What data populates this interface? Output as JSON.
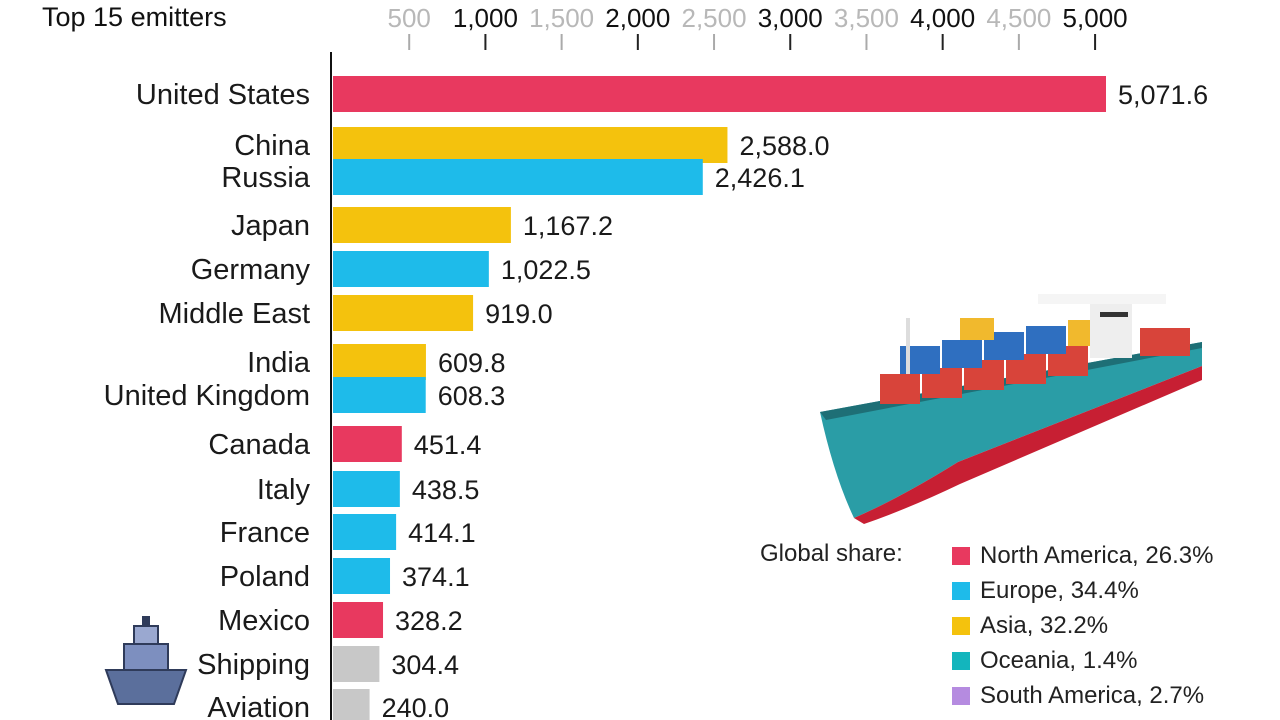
{
  "chart_data": {
    "type": "bar",
    "orientation": "horizontal",
    "title": "Top 15 emitters",
    "xlim": [
      0,
      5000
    ],
    "x_ticks": [
      500,
      1000,
      1500,
      2000,
      2500,
      3000,
      3500,
      4000,
      4500,
      5000
    ],
    "x_tick_labels": [
      "500",
      "1,000",
      "1,500",
      "2,000",
      "2,500",
      "3,000",
      "3,500",
      "4,000",
      "4,500",
      "5,000"
    ],
    "categories": [
      "United States",
      "China",
      "Russia",
      "Japan",
      "Germany",
      "Middle East",
      "India",
      "United Kingdom",
      "Canada",
      "Italy",
      "France",
      "Poland",
      "Mexico",
      "Shipping",
      "Aviation"
    ],
    "values": [
      5071.6,
      2588.0,
      2426.1,
      1167.2,
      1022.5,
      919.0,
      609.8,
      608.3,
      451.4,
      438.5,
      414.1,
      374.1,
      328.2,
      304.4,
      240.0
    ],
    "value_labels": [
      "5,071.6",
      "2,588.0",
      "2,426.1",
      "1,167.2",
      "1,022.5",
      "919.0",
      "609.8",
      "608.3",
      "451.4",
      "438.5",
      "414.1",
      "374.1",
      "328.2",
      "304.4",
      "240.0"
    ],
    "regions": [
      "North America",
      "Asia",
      "Europe",
      "Asia",
      "Europe",
      "Asia",
      "Asia",
      "Europe",
      "North America",
      "Europe",
      "Europe",
      "Europe",
      "North America",
      "Other",
      "Other"
    ],
    "region_colors": {
      "North America": "#e8395f",
      "Europe": "#1ebbea",
      "Asia": "#f4c20d",
      "Oceania": "#13b5bd",
      "South America": "#b58be0",
      "Africa": "#6fe06f",
      "Other": "#c8c8c8"
    },
    "grid": false,
    "legend": {
      "title": "Global share:",
      "position": "bottom-right",
      "items": [
        {
          "label": "North America, 26.3%",
          "region": "North America",
          "share": 26.3
        },
        {
          "label": "Europe, 34.4%",
          "region": "Europe",
          "share": 34.4
        },
        {
          "label": "Asia, 32.2%",
          "region": "Asia",
          "share": 32.2
        },
        {
          "label": "Oceania, 1.4%",
          "region": "Oceania",
          "share": 1.4
        },
        {
          "label": "South America, 2.7%",
          "region": "South America",
          "share": 2.7
        }
      ]
    }
  },
  "icons": {
    "illustration": "container-ship-illustration",
    "badge": "cargo-ship-icon"
  }
}
